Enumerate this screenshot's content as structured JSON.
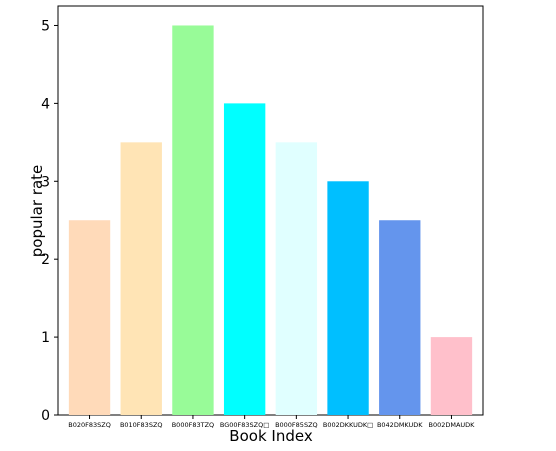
{
  "chart_data": {
    "type": "bar",
    "title": "",
    "xlabel": "Book Index",
    "ylabel": "popular rate",
    "categories": [
      "B020F83SZQ",
      "B010F83SZQ",
      "B000F83TZQ",
      "BG00F83SZQ□",
      "B000F85SZQ",
      "B002DKKUDK□",
      "B042DMKUDK",
      "B002DMAUDK"
    ],
    "values": [
      2.5,
      3.5,
      5,
      4,
      3.5,
      3,
      2.5,
      1
    ],
    "colors": [
      "#ffdab9",
      "#ffe4b5",
      "#98fb98",
      "#00ffff",
      "#e0ffff",
      "#00bfff",
      "#6495ed",
      "#ffc0cb"
    ],
    "ylim": [
      0,
      5.25
    ],
    "yticks": [
      "0",
      "1",
      "2",
      "3",
      "4",
      "5"
    ],
    "grid": false,
    "legend": "none"
  }
}
